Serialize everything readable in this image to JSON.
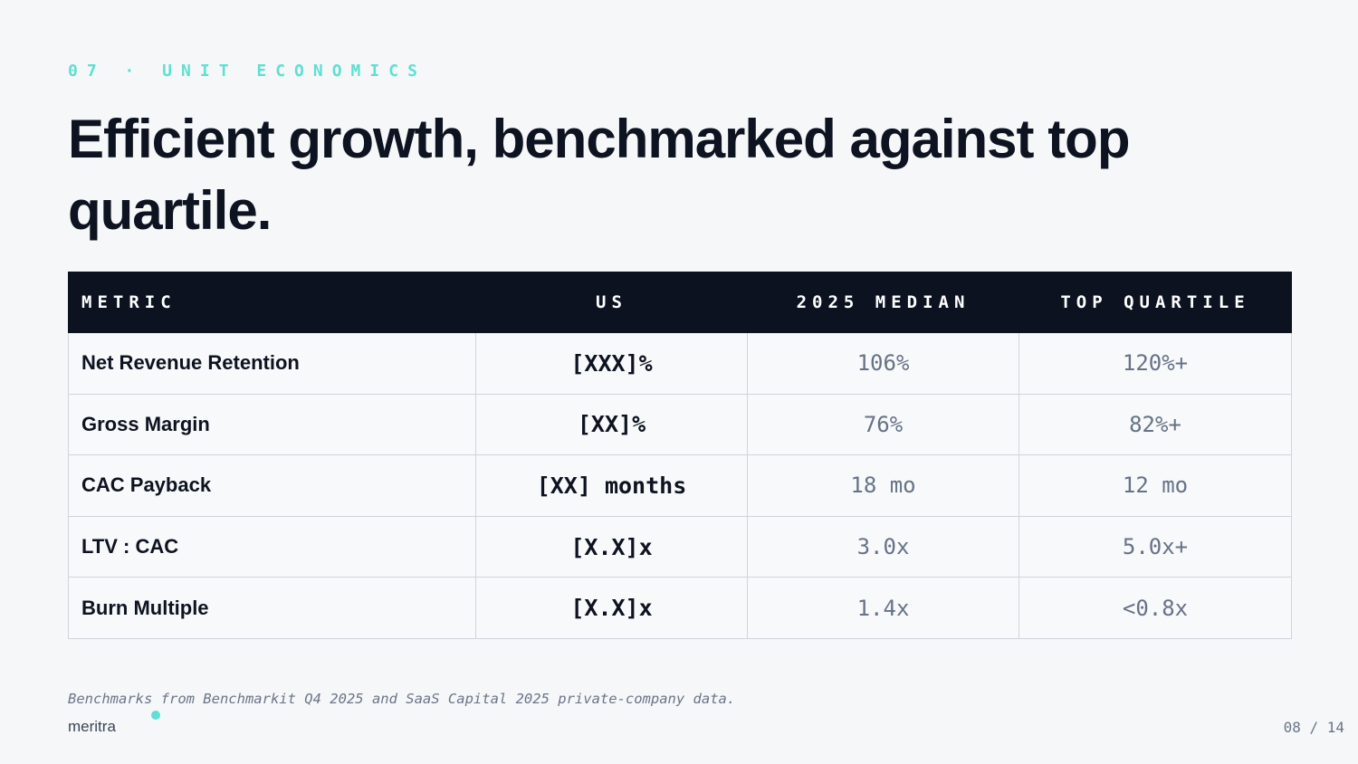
{
  "slide": {
    "eyebrow": "07 · UNIT ECONOMICS",
    "headline": "Efficient growth, benchmarked against top quartile.",
    "footnote": "Benchmarks from Benchmarkit Q4 2025 and SaaS Capital 2025 private-company data.",
    "brand": "meritra",
    "page_indicator": "08 / 14",
    "accent_color": "#5ee0d2",
    "header_bg_color": "#0c1220"
  },
  "table": {
    "headers": [
      "METRIC",
      "US",
      "2025 MEDIAN",
      "TOP QUARTILE"
    ],
    "rows": [
      {
        "metric": "Net Revenue Retention",
        "us": "[XXX]%",
        "median": "106%",
        "top": "120%+"
      },
      {
        "metric": "Gross Margin",
        "us": "[XX]%",
        "median": "76%",
        "top": "82%+"
      },
      {
        "metric": "CAC Payback",
        "us": "[XX] months",
        "median": "18 mo",
        "top": "12 mo"
      },
      {
        "metric": "LTV : CAC",
        "us": "[X.X]x",
        "median": "3.0x",
        "top": "5.0x+"
      },
      {
        "metric": "Burn Multiple",
        "us": "[X.X]x",
        "median": "1.4x",
        "top": "<0.8x"
      }
    ]
  }
}
